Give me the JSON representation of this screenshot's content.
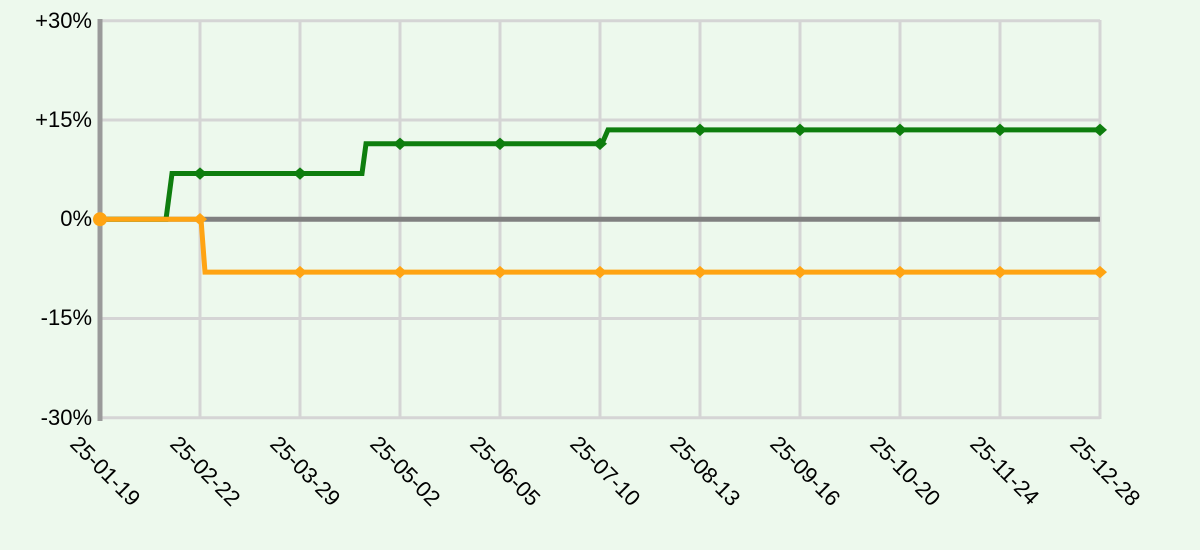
{
  "chart_data": {
    "type": "line",
    "subtype": "step",
    "title": "",
    "legend": "none",
    "grid": true,
    "x_axis": {
      "categories": [
        "25-01-19",
        "25-02-22",
        "25-03-29",
        "25-05-02",
        "25-06-05",
        "25-07-10",
        "25-08-13",
        "25-09-16",
        "25-10-20",
        "25-11-24",
        "25-12-28"
      ],
      "label_rotation_deg": 45
    },
    "y_axis": {
      "tick_labels": [
        "+30%",
        "+15%",
        "0%",
        "-15%",
        "-30%"
      ],
      "tick_values": [
        30,
        15,
        0,
        -15,
        -30
      ],
      "ylim": [
        -30,
        30
      ],
      "unit": "%"
    },
    "series": [
      {
        "name": "green-series",
        "color": "#0e7e0e",
        "marker": "diamond",
        "values_at_ticks": [
          0,
          6.9,
          6.9,
          11.4,
          11.4,
          11.4,
          13.5,
          13.5,
          13.5,
          13.5,
          13.5
        ],
        "breakpoints": [
          [
            0,
            0
          ],
          [
            0.66,
            0
          ],
          [
            0.72,
            6.9
          ],
          [
            2.62,
            6.9
          ],
          [
            2.66,
            11.4
          ],
          [
            5.02,
            11.4
          ],
          [
            5.08,
            13.5
          ],
          [
            10,
            13.5
          ]
        ]
      },
      {
        "name": "orange-series",
        "color": "#ffa413",
        "marker": "diamond",
        "first_marker": "circle",
        "values_at_ticks": [
          0,
          0,
          -8,
          -8,
          -8,
          -8,
          -8,
          -8,
          -8,
          -8,
          -8
        ],
        "breakpoints": [
          [
            0,
            0
          ],
          [
            1.01,
            0
          ],
          [
            1.05,
            -8
          ],
          [
            10,
            -8
          ]
        ]
      }
    ],
    "colors": {
      "background": "#edf9ed",
      "grid": "#d5d5d5",
      "zero_line": "#808080",
      "axis": "#9a9a9a",
      "text": "#000000"
    }
  }
}
